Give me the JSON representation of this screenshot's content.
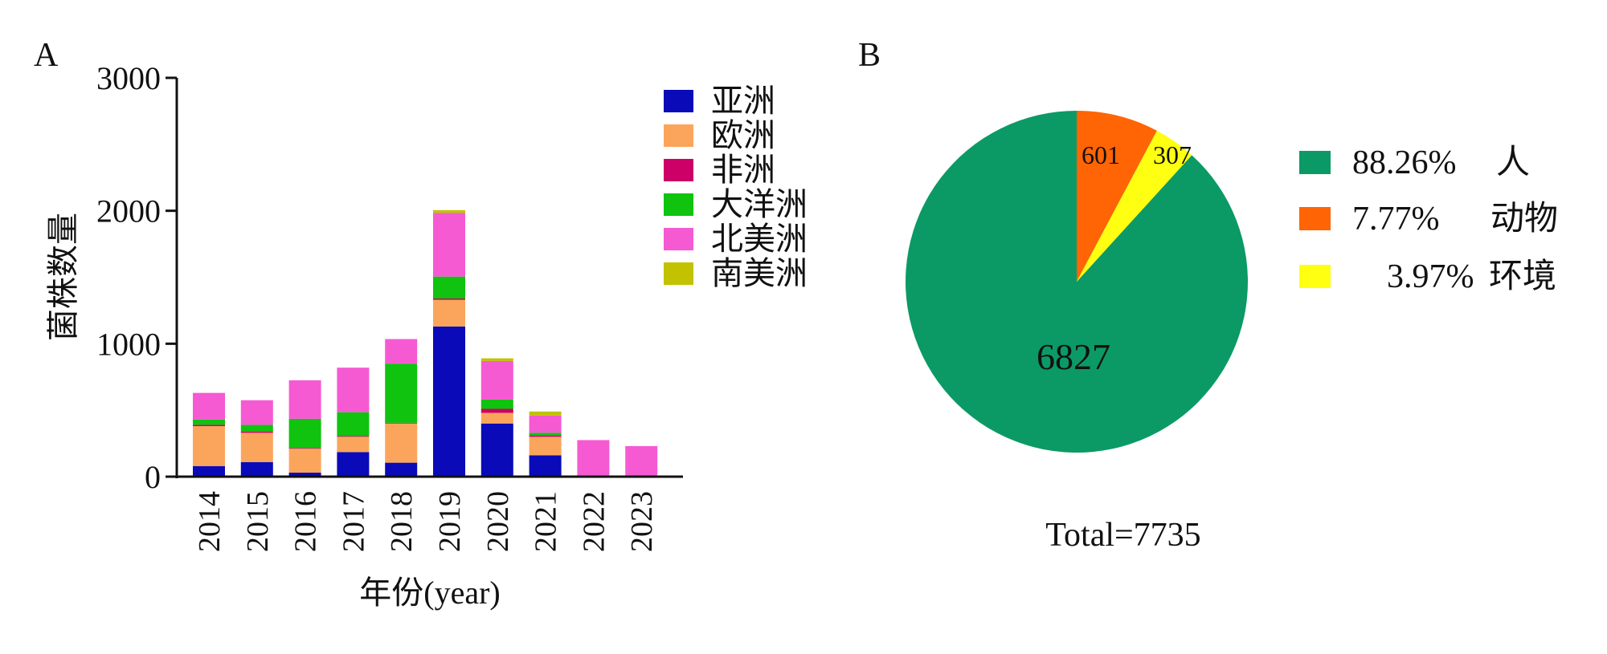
{
  "chart_data": [
    {
      "panel": "A",
      "type": "bar",
      "stacked": true,
      "xlabel": "年份(year)",
      "ylabel": "菌株数量",
      "ylim": [
        0,
        3000
      ],
      "yticks": [
        0,
        1000,
        2000,
        3000
      ],
      "legend_position": "top-right",
      "categories": [
        "2014",
        "2015",
        "2016",
        "2017",
        "2018",
        "2019",
        "2020",
        "2021",
        "2022",
        "2023"
      ],
      "series": [
        {
          "name": "亚洲",
          "color": "#0a0ab8",
          "values": [
            80,
            110,
            30,
            185,
            105,
            1130,
            400,
            160,
            10,
            5
          ]
        },
        {
          "name": "欧洲",
          "color": "#fba55c",
          "values": [
            300,
            220,
            180,
            115,
            295,
            200,
            80,
            140,
            0,
            0
          ]
        },
        {
          "name": "非洲",
          "color": "#cc0066",
          "values": [
            10,
            10,
            5,
            5,
            5,
            10,
            30,
            10,
            0,
            0
          ]
        },
        {
          "name": "大洋洲",
          "color": "#0fc30f",
          "values": [
            40,
            50,
            220,
            180,
            445,
            165,
            70,
            20,
            0,
            0
          ]
        },
        {
          "name": "北美洲",
          "color": "#f55ad2",
          "values": [
            200,
            185,
            290,
            335,
            185,
            480,
            290,
            130,
            265,
            225
          ]
        },
        {
          "name": "南美洲",
          "color": "#c2c200",
          "values": [
            0,
            0,
            0,
            0,
            0,
            20,
            20,
            30,
            0,
            0
          ]
        }
      ]
    },
    {
      "panel": "B",
      "type": "pie",
      "total_label": "Total=7735",
      "slices": [
        {
          "name": "人",
          "value": 6827,
          "percent_label": "88.26%",
          "color": "#0b9a65"
        },
        {
          "name": "动物",
          "value": 601,
          "percent_label": "7.77%",
          "color": "#ff6405"
        },
        {
          "name": "环境",
          "value": 307,
          "percent_label": "3.97%",
          "color": "#ffff12"
        }
      ]
    }
  ]
}
